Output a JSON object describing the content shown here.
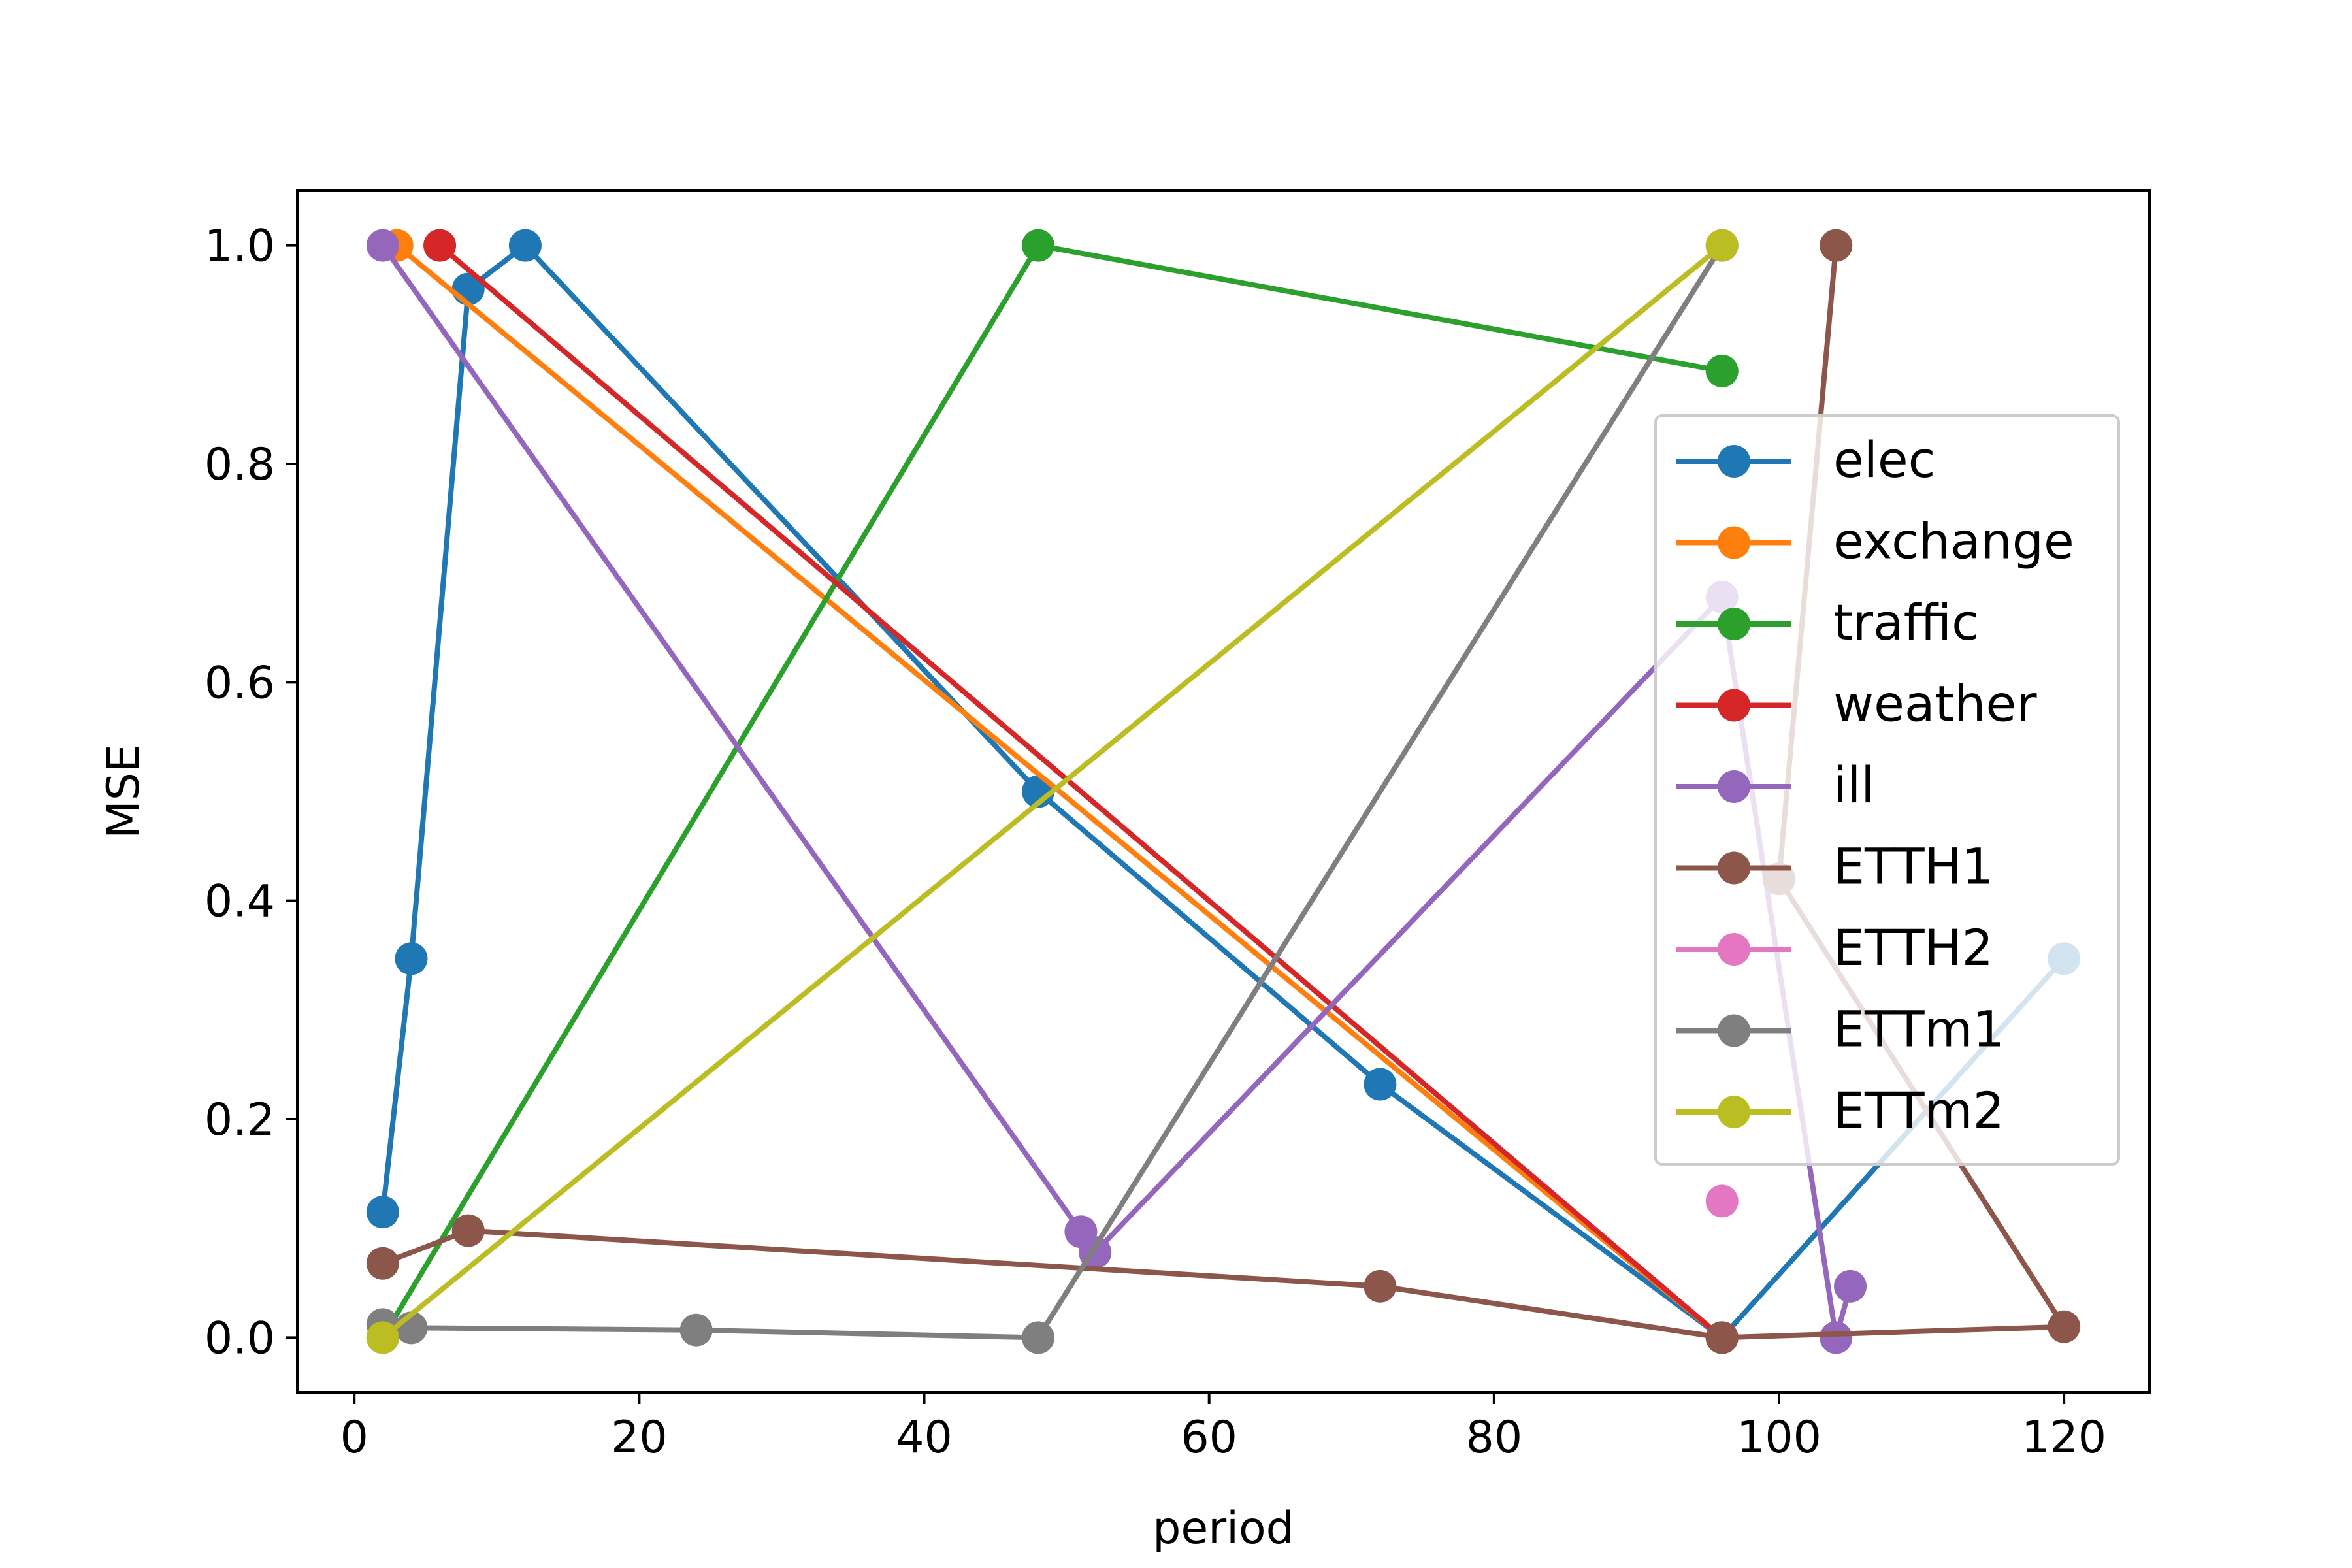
{
  "chart_data": {
    "type": "line",
    "title": "",
    "xlabel": "period",
    "ylabel": "MSE",
    "xlim": [
      -4,
      126
    ],
    "ylim": [
      -0.05,
      1.05
    ],
    "xticks": [
      0,
      20,
      40,
      60,
      80,
      100,
      120
    ],
    "yticks": [
      0.0,
      0.2,
      0.4,
      0.6,
      0.8,
      1.0
    ],
    "xtick_labels": [
      "0",
      "20",
      "40",
      "60",
      "80",
      "100",
      "120"
    ],
    "ytick_labels": [
      "0.0",
      "0.2",
      "0.4",
      "0.6",
      "0.8",
      "1.0"
    ],
    "grid": false,
    "legend_position": "center-right",
    "series": [
      {
        "name": "elec",
        "color": "#1f77b4",
        "x": [
          2,
          4,
          8,
          12,
          48,
          72,
          96,
          120
        ],
        "y": [
          0.115,
          0.347,
          0.96,
          1.0,
          0.5,
          0.232,
          0.0,
          0.347
        ]
      },
      {
        "name": "exchange",
        "color": "#ff7f0e",
        "x": [
          3,
          96
        ],
        "y": [
          1.0,
          0.0
        ]
      },
      {
        "name": "traffic",
        "color": "#2ca02c",
        "x": [
          2,
          48,
          96
        ],
        "y": [
          0.0,
          1.0,
          0.885
        ]
      },
      {
        "name": "weather",
        "color": "#d62728",
        "x": [
          6,
          96
        ],
        "y": [
          1.0,
          0.0
        ]
      },
      {
        "name": "ill",
        "color": "#9467bd",
        "x": [
          2,
          51,
          52,
          96,
          104,
          105
        ],
        "y": [
          1.0,
          0.097,
          0.078,
          0.678,
          0.0,
          0.047
        ]
      },
      {
        "name": "ETTH1",
        "color": "#8c564b",
        "x": [
          2,
          8,
          72,
          96,
          120,
          100,
          104
        ],
        "y": [
          0.068,
          0.098,
          0.047,
          0.0,
          0.01,
          0.42,
          1.0
        ]
      },
      {
        "name": "ETTH2",
        "color": "#e377c2",
        "x": [
          96
        ],
        "y": [
          0.125
        ]
      },
      {
        "name": "ETTm1",
        "color": "#7f7f7f",
        "x": [
          2,
          4,
          24,
          48,
          96
        ],
        "y": [
          0.012,
          0.009,
          0.007,
          0.0,
          1.0
        ]
      },
      {
        "name": "ETTm2",
        "color": "#bcbd22",
        "x": [
          2,
          96
        ],
        "y": [
          0.0,
          1.0
        ]
      }
    ]
  }
}
